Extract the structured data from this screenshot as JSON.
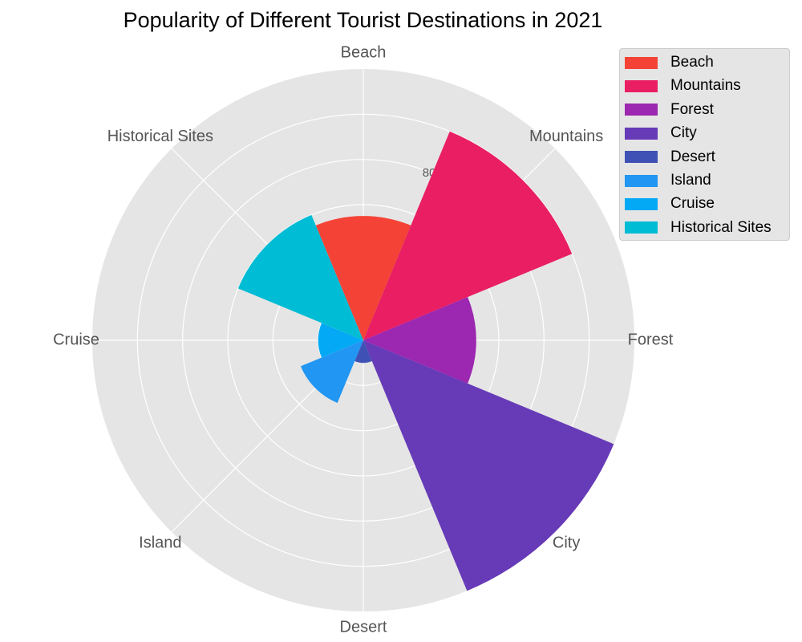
{
  "chart_data": {
    "type": "polar-bar",
    "title": "Popularity of Different Tourist Destinations in 2021",
    "categories": [
      "Beach",
      "Mountains",
      "Forest",
      "City",
      "Desert",
      "Island",
      "Cruise",
      "Historical Sites"
    ],
    "values": [
      550,
      1000,
      500,
      1200,
      100,
      300,
      200,
      600
    ],
    "colors": [
      "#f44336",
      "#e91e63",
      "#9c27b0",
      "#673ab7",
      "#3f51b5",
      "#2196f3",
      "#03a9f4",
      "#00bcd4"
    ],
    "radial_ticks": [
      200,
      400,
      600,
      800,
      1000,
      1200
    ],
    "radial_tick_labels_visible": [
      "800"
    ],
    "rmax": 1200,
    "grid": true,
    "legend_position": "top-right"
  }
}
